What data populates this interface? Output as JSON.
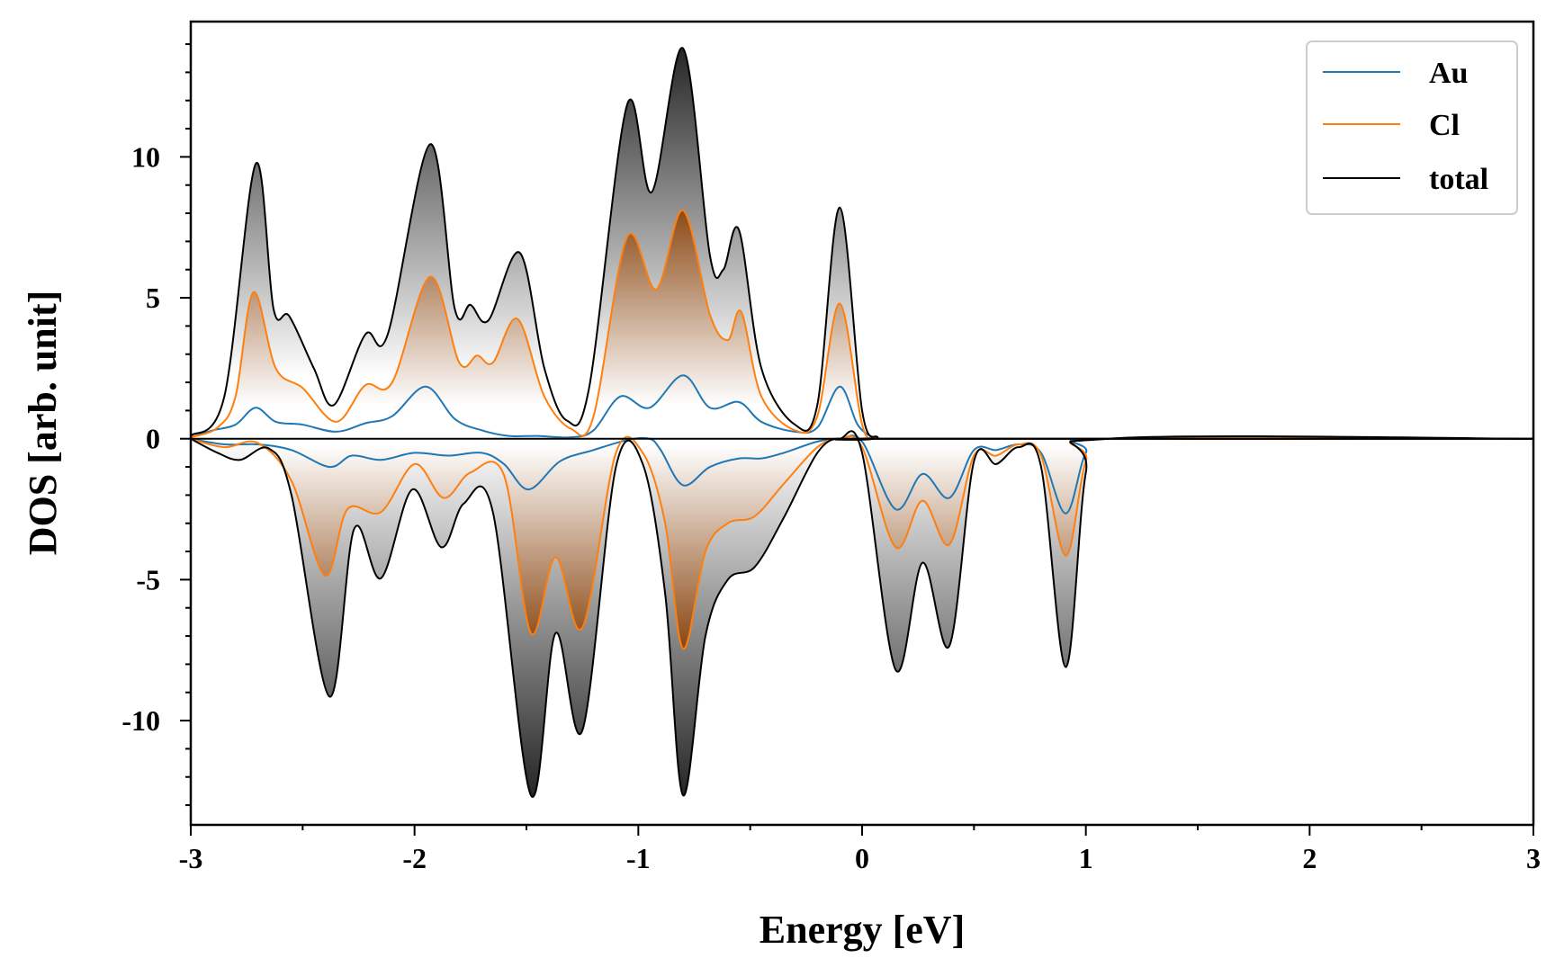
{
  "chart_data": {
    "type": "area",
    "title": "",
    "xlabel": "Energy [eV]",
    "ylabel": "DOS [arb. unit]",
    "xlim": [
      -3,
      3
    ],
    "ylim": [
      -13.7,
      14.8
    ],
    "x_ticks": [
      -3,
      -2,
      -1,
      0,
      1,
      2,
      3
    ],
    "x_tick_labels": [
      "-3",
      "-2",
      "-1",
      "0",
      "1",
      "2",
      "3"
    ],
    "y_ticks": [
      -10,
      -5,
      0,
      5,
      10
    ],
    "y_tick_labels": [
      "-10",
      "-5",
      "0",
      "5",
      "10"
    ],
    "grid": false,
    "legend_position": "top-right",
    "fill_gradient": true,
    "series": [
      {
        "name": "Au",
        "color": "#1f77b4",
        "spin_up": [
          [
            -3.0,
            0.05
          ],
          [
            -2.9,
            0.3
          ],
          [
            -2.8,
            0.5
          ],
          [
            -2.71,
            1.1
          ],
          [
            -2.62,
            0.6
          ],
          [
            -2.5,
            0.5
          ],
          [
            -2.35,
            0.25
          ],
          [
            -2.22,
            0.55
          ],
          [
            -2.1,
            0.8
          ],
          [
            -1.95,
            1.85
          ],
          [
            -1.82,
            0.7
          ],
          [
            -1.7,
            0.3
          ],
          [
            -1.58,
            0.1
          ],
          [
            -1.45,
            0.1
          ],
          [
            -1.3,
            0.05
          ],
          [
            -1.2,
            0.3
          ],
          [
            -1.08,
            1.5
          ],
          [
            -0.95,
            1.1
          ],
          [
            -0.8,
            2.25
          ],
          [
            -0.68,
            1.1
          ],
          [
            -0.55,
            1.3
          ],
          [
            -0.45,
            0.6
          ],
          [
            -0.3,
            0.25
          ],
          [
            -0.2,
            0.4
          ],
          [
            -0.1,
            1.85
          ],
          [
            -0.02,
            0.5
          ],
          [
            0.05,
            0.05
          ],
          [
            0.1,
            0.0
          ],
          [
            3.0,
            0.0
          ]
        ],
        "spin_down": [
          [
            -3.0,
            0.0
          ],
          [
            -2.85,
            -0.2
          ],
          [
            -2.7,
            -0.2
          ],
          [
            -2.55,
            -0.4
          ],
          [
            -2.38,
            -1.0
          ],
          [
            -2.28,
            -0.6
          ],
          [
            -2.15,
            -0.75
          ],
          [
            -2.0,
            -0.5
          ],
          [
            -1.85,
            -0.6
          ],
          [
            -1.7,
            -0.5
          ],
          [
            -1.6,
            -0.9
          ],
          [
            -1.49,
            -1.8
          ],
          [
            -1.35,
            -0.8
          ],
          [
            -1.2,
            -0.4
          ],
          [
            -1.05,
            -0.05
          ],
          [
            -0.95,
            0.0
          ],
          [
            -0.9,
            -0.4
          ],
          [
            -0.8,
            -1.65
          ],
          [
            -0.68,
            -1.0
          ],
          [
            -0.55,
            -0.7
          ],
          [
            -0.45,
            -0.7
          ],
          [
            -0.35,
            -0.5
          ],
          [
            -0.2,
            -0.1
          ],
          [
            -0.1,
            0.0
          ],
          [
            0.0,
            -0.1
          ],
          [
            0.15,
            -2.5
          ],
          [
            0.27,
            -1.25
          ],
          [
            0.39,
            -2.1
          ],
          [
            0.5,
            -0.4
          ],
          [
            0.6,
            -0.4
          ],
          [
            0.7,
            -0.2
          ],
          [
            0.8,
            -0.5
          ],
          [
            0.91,
            -2.65
          ],
          [
            1.0,
            -0.5
          ],
          [
            1.1,
            0.0
          ],
          [
            3.0,
            0.0
          ]
        ]
      },
      {
        "name": "Cl",
        "color": "#ff7f0e",
        "spin_up": [
          [
            -3.0,
            0.05
          ],
          [
            -2.88,
            0.4
          ],
          [
            -2.8,
            1.5
          ],
          [
            -2.72,
            5.2
          ],
          [
            -2.62,
            2.5
          ],
          [
            -2.5,
            1.8
          ],
          [
            -2.35,
            0.6
          ],
          [
            -2.22,
            1.9
          ],
          [
            -2.1,
            2.0
          ],
          [
            -1.93,
            5.75
          ],
          [
            -1.8,
            2.7
          ],
          [
            -1.72,
            2.95
          ],
          [
            -1.65,
            2.7
          ],
          [
            -1.54,
            4.25
          ],
          [
            -1.42,
            1.5
          ],
          [
            -1.3,
            0.35
          ],
          [
            -1.2,
            0.8
          ],
          [
            -1.05,
            7.15
          ],
          [
            -0.92,
            5.3
          ],
          [
            -0.8,
            8.1
          ],
          [
            -0.68,
            4.4
          ],
          [
            -0.6,
            3.5
          ],
          [
            -0.54,
            4.5
          ],
          [
            -0.45,
            1.5
          ],
          [
            -0.3,
            0.3
          ],
          [
            -0.2,
            0.8
          ],
          [
            -0.1,
            4.8
          ],
          [
            0.0,
            0.5
          ],
          [
            0.06,
            0.05
          ],
          [
            0.1,
            0.0
          ],
          [
            3.0,
            0.0
          ]
        ],
        "spin_down": [
          [
            -3.0,
            0.0
          ],
          [
            -2.85,
            -0.3
          ],
          [
            -2.7,
            -0.15
          ],
          [
            -2.55,
            -1.5
          ],
          [
            -2.4,
            -4.85
          ],
          [
            -2.3,
            -2.5
          ],
          [
            -2.15,
            -2.6
          ],
          [
            -2.0,
            -0.9
          ],
          [
            -1.87,
            -2.1
          ],
          [
            -1.75,
            -1.2
          ],
          [
            -1.6,
            -1.3
          ],
          [
            -1.48,
            -6.9
          ],
          [
            -1.37,
            -4.2
          ],
          [
            -1.25,
            -6.7
          ],
          [
            -1.1,
            -0.5
          ],
          [
            -0.98,
            -0.5
          ],
          [
            -0.88,
            -3.0
          ],
          [
            -0.8,
            -7.45
          ],
          [
            -0.7,
            -4.0
          ],
          [
            -0.6,
            -3.0
          ],
          [
            -0.48,
            -2.75
          ],
          [
            -0.35,
            -1.6
          ],
          [
            -0.2,
            -0.3
          ],
          [
            -0.1,
            0.0
          ],
          [
            0.0,
            -0.3
          ],
          [
            0.15,
            -3.85
          ],
          [
            0.27,
            -2.2
          ],
          [
            0.39,
            -3.75
          ],
          [
            0.5,
            -0.6
          ],
          [
            0.6,
            -0.6
          ],
          [
            0.7,
            -0.2
          ],
          [
            0.8,
            -0.6
          ],
          [
            0.91,
            -4.15
          ],
          [
            1.0,
            -0.8
          ],
          [
            1.1,
            0.0
          ],
          [
            3.0,
            0.0
          ]
        ]
      },
      {
        "name": "total",
        "color": "#000000",
        "spin_up": [
          [
            -3.0,
            0.1
          ],
          [
            -2.85,
            1.5
          ],
          [
            -2.71,
            9.75
          ],
          [
            -2.63,
            4.6
          ],
          [
            -2.56,
            4.35
          ],
          [
            -2.45,
            2.5
          ],
          [
            -2.36,
            1.2
          ],
          [
            -2.22,
            3.7
          ],
          [
            -2.12,
            3.7
          ],
          [
            -1.93,
            10.45
          ],
          [
            -1.82,
            4.6
          ],
          [
            -1.75,
            4.75
          ],
          [
            -1.67,
            4.2
          ],
          [
            -1.53,
            6.6
          ],
          [
            -1.42,
            2.5
          ],
          [
            -1.32,
            0.65
          ],
          [
            -1.22,
            1.8
          ],
          [
            -1.05,
            11.85
          ],
          [
            -0.94,
            8.75
          ],
          [
            -0.8,
            13.85
          ],
          [
            -0.68,
            6.5
          ],
          [
            -0.62,
            6.0
          ],
          [
            -0.55,
            7.4
          ],
          [
            -0.45,
            2.5
          ],
          [
            -0.3,
            0.5
          ],
          [
            -0.2,
            1.2
          ],
          [
            -0.1,
            8.2
          ],
          [
            0.0,
            1.0
          ],
          [
            0.07,
            0.05
          ],
          [
            0.1,
            0.0
          ],
          [
            3.0,
            0.0
          ]
        ],
        "spin_down": [
          [
            -3.0,
            0.0
          ],
          [
            -2.88,
            -0.5
          ],
          [
            -2.78,
            -0.75
          ],
          [
            -2.65,
            -0.35
          ],
          [
            -2.55,
            -2.0
          ],
          [
            -2.38,
            -9.15
          ],
          [
            -2.27,
            -3.2
          ],
          [
            -2.15,
            -4.95
          ],
          [
            -2.01,
            -1.8
          ],
          [
            -1.88,
            -3.85
          ],
          [
            -1.78,
            -2.3
          ],
          [
            -1.65,
            -2.6
          ],
          [
            -1.48,
            -12.65
          ],
          [
            -1.37,
            -6.9
          ],
          [
            -1.25,
            -10.35
          ],
          [
            -1.1,
            -1.0
          ],
          [
            -0.98,
            -0.9
          ],
          [
            -0.88,
            -5.5
          ],
          [
            -0.8,
            -12.65
          ],
          [
            -0.7,
            -7.0
          ],
          [
            -0.6,
            -5.0
          ],
          [
            -0.48,
            -4.55
          ],
          [
            -0.35,
            -2.8
          ],
          [
            -0.2,
            -0.5
          ],
          [
            -0.1,
            0.0
          ],
          [
            0.0,
            -0.5
          ],
          [
            0.15,
            -8.2
          ],
          [
            0.27,
            -4.4
          ],
          [
            0.39,
            -7.35
          ],
          [
            0.5,
            -0.8
          ],
          [
            0.6,
            -0.9
          ],
          [
            0.7,
            -0.3
          ],
          [
            0.8,
            -1.0
          ],
          [
            0.91,
            -8.1
          ],
          [
            1.0,
            -1.2
          ],
          [
            1.1,
            0.0
          ],
          [
            3.0,
            0.0
          ]
        ]
      }
    ]
  },
  "legend": {
    "items": [
      {
        "label": "Au",
        "color": "#1f77b4"
      },
      {
        "label": "Cl",
        "color": "#ff7f0e"
      },
      {
        "label": "total",
        "color": "#000000"
      }
    ]
  }
}
